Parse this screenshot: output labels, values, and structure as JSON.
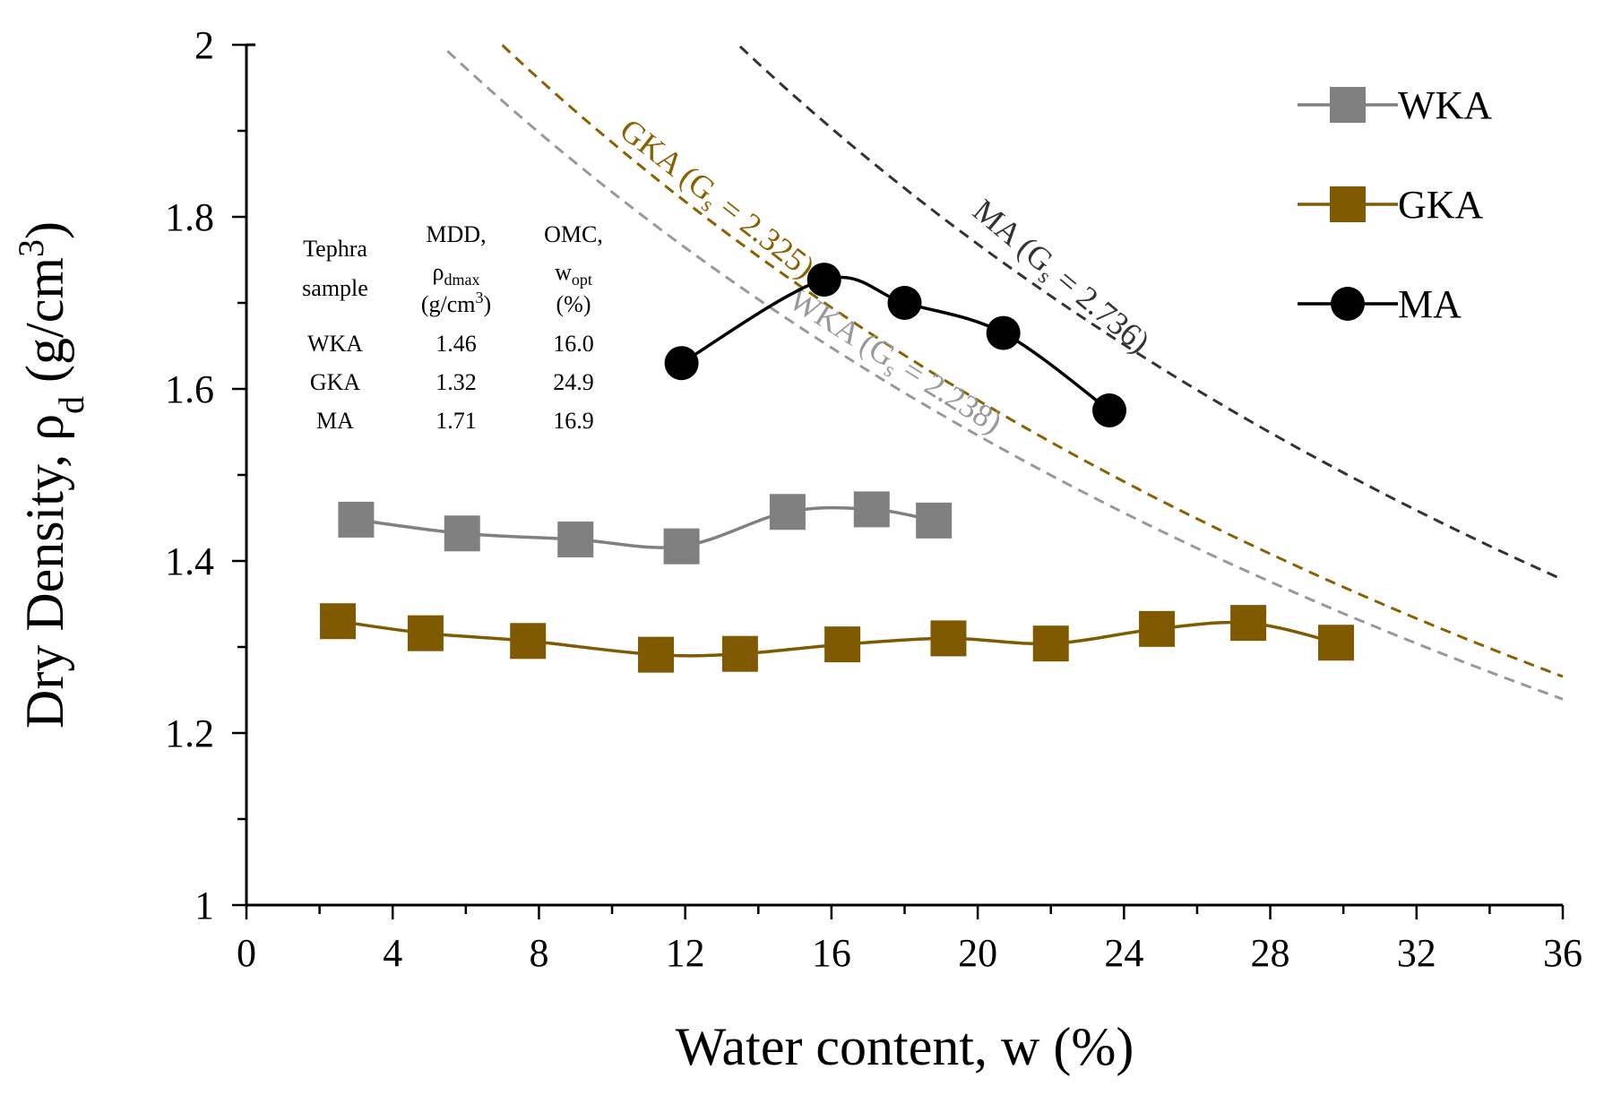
{
  "chart_data": {
    "type": "line",
    "title": "",
    "xlabel": {
      "main": "Water content, w (%)"
    },
    "ylabel": {
      "main": "Dry Density, ",
      "rho": "ρ",
      "sub": "d",
      "unit_open": " (g/cm",
      "sup": "3",
      "unit_close": ")"
    },
    "xlim": [
      0,
      36
    ],
    "ylim": [
      1,
      2
    ],
    "x_ticks": [
      0,
      4,
      8,
      12,
      16,
      20,
      24,
      28,
      32,
      36
    ],
    "y_ticks": [
      1,
      1.2,
      1.4,
      1.6,
      1.8,
      2
    ],
    "x_tick_labels": [
      "0",
      "4",
      "8",
      "12",
      "16",
      "20",
      "24",
      "28",
      "32",
      "36"
    ],
    "y_tick_labels": [
      "1",
      "1.2",
      "1.4",
      "1.6",
      "1.8",
      "2"
    ],
    "grid": false,
    "legend_position": "top-right",
    "series": [
      {
        "name": "WKA",
        "marker": "square",
        "color": "#808080",
        "x": [
          3.0,
          5.9,
          9.0,
          11.9,
          14.8,
          17.1,
          18.8
        ],
        "y": [
          1.448,
          1.432,
          1.425,
          1.417,
          1.457,
          1.46,
          1.447
        ]
      },
      {
        "name": "GKA",
        "marker": "square",
        "color": "#7f5a00",
        "x": [
          2.5,
          4.9,
          7.7,
          11.2,
          13.5,
          16.3,
          19.2,
          22.0,
          24.9,
          27.4,
          29.8
        ],
        "y": [
          1.33,
          1.316,
          1.307,
          1.291,
          1.292,
          1.303,
          1.31,
          1.304,
          1.321,
          1.328,
          1.305
        ]
      },
      {
        "name": "MA",
        "marker": "circle",
        "color": "#000000",
        "x": [
          11.9,
          15.8,
          18.0,
          20.7,
          23.6
        ],
        "y": [
          1.63,
          1.727,
          1.7,
          1.665,
          1.575
        ]
      }
    ],
    "zav_curves": [
      {
        "name": "MA",
        "gs": 2.736,
        "label_prefix": "MA (G",
        "label_sub": "s",
        "label_suffix": " = 2.736)",
        "color": "#333333",
        "label_x": 22.1,
        "rotation": 40
      },
      {
        "name": "GKA",
        "gs": 2.325,
        "label_prefix": "GKA (G",
        "label_sub": "s",
        "label_suffix": " = 2.325)",
        "color": "#8a6100",
        "label_x": 12.7,
        "rotation": 38
      },
      {
        "name": "WKA",
        "gs": 2.238,
        "label_prefix": "WKA (G",
        "label_sub": "s",
        "label_suffix": " = 2.238)",
        "color": "#999999",
        "label_x": 17.6,
        "rotation": 32
      }
    ],
    "table": {
      "headers": [
        {
          "lines": [
            "Tephra",
            "sample"
          ]
        },
        {
          "lines": [
            "MDD,"
          ],
          "rho": "ρ",
          "rho_sub": "dmax",
          "unit": "(g/cm",
          "unit_sup": "3",
          "unit_close": ")"
        },
        {
          "lines": [
            "OMC,"
          ],
          "w": "w",
          "w_sub": "opt",
          "pct": "(%)"
        }
      ],
      "rows": [
        [
          "WKA",
          "1.46",
          "16.0"
        ],
        [
          "GKA",
          "1.32",
          "24.9"
        ],
        [
          "MA",
          "1.71",
          "16.9"
        ]
      ]
    }
  }
}
